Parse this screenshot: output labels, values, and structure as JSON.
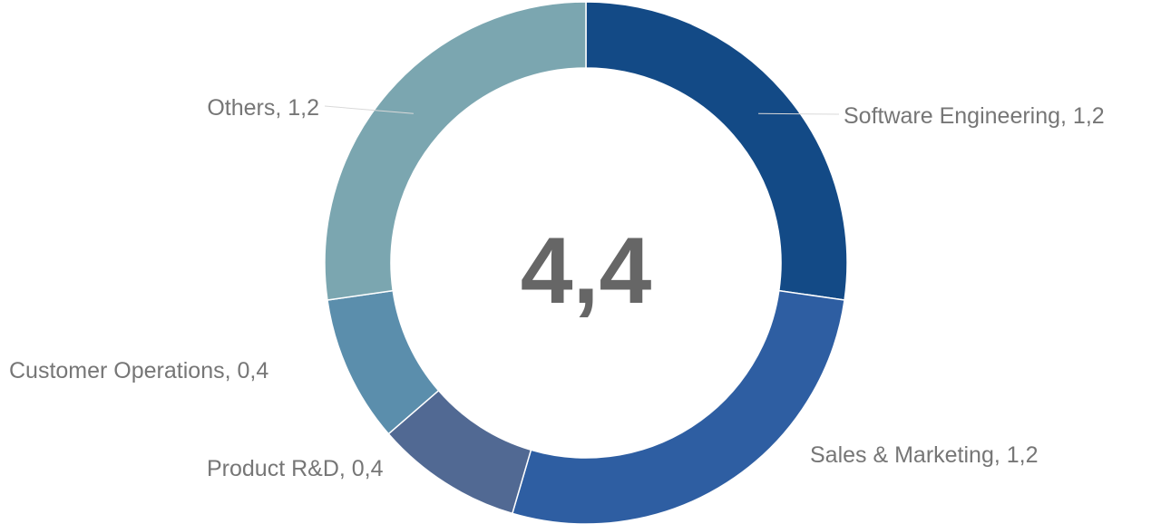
{
  "chart_data": {
    "type": "pie",
    "donut": true,
    "center_label": "4,4",
    "decimal_separator": ",",
    "slices": [
      {
        "name": "Software Engineering",
        "value": 1.2,
        "color": "#134A86"
      },
      {
        "name": "Sales & Marketing",
        "value": 1.2,
        "color": "#2E5EA2"
      },
      {
        "name": "Product R&D",
        "value": 0.4,
        "color": "#516993"
      },
      {
        "name": "Customer Operations",
        "value": 0.4,
        "color": "#5B8EAC"
      },
      {
        "name": "Others",
        "value": 1.2,
        "color": "#7BA6B0"
      }
    ],
    "label_format": "name, value"
  }
}
